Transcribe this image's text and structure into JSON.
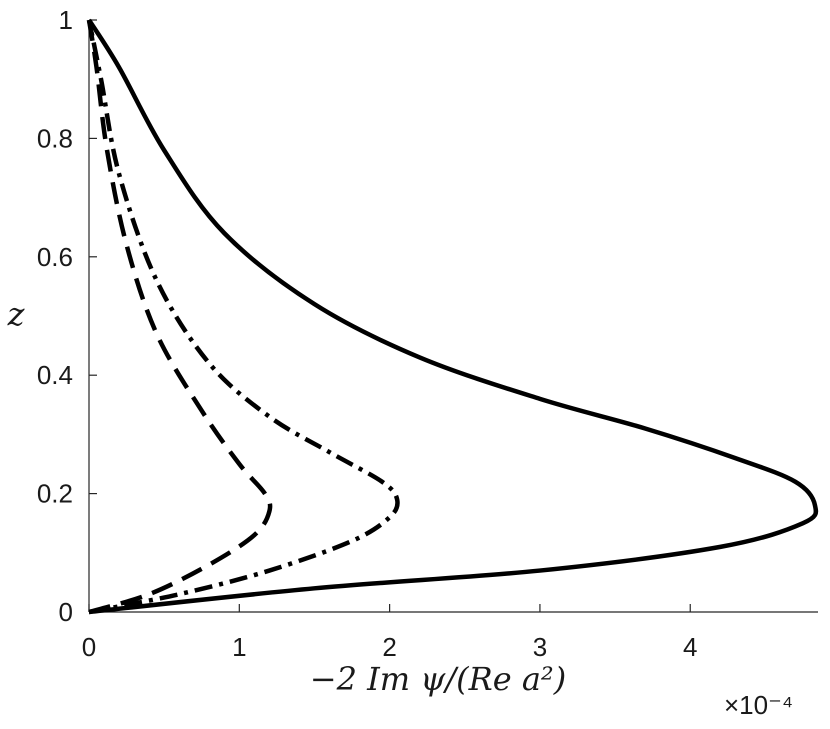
{
  "chart_data": {
    "type": "line",
    "title": "",
    "xlabel": "−2 Im ψ/(Re a²)",
    "ylabel": "z",
    "x_exponent_label": "×10⁻⁴",
    "xlim": [
      0,
      4.85
    ],
    "ylim": [
      0,
      1
    ],
    "x_ticks": [
      0,
      1,
      2,
      3,
      4
    ],
    "x_tick_labels": [
      "0",
      "1",
      "2",
      "3",
      "4"
    ],
    "y_ticks": [
      0,
      0.2,
      0.4,
      0.6,
      0.8,
      1
    ],
    "y_tick_labels": [
      "0",
      "0.2",
      "0.4",
      "0.6",
      "0.8",
      "1"
    ],
    "grid": false,
    "series": [
      {
        "style": "solid",
        "color": "#000000",
        "x": [
          0,
          1.5,
          3.0,
          4.2,
          4.75,
          4.83,
          4.7,
          4.3,
          3.7,
          3.0,
          2.2,
          1.5,
          0.9,
          0.5,
          0.2,
          0
        ],
        "y": [
          0,
          0.04,
          0.07,
          0.11,
          0.15,
          0.18,
          0.22,
          0.26,
          0.31,
          0.36,
          0.43,
          0.52,
          0.64,
          0.78,
          0.92,
          1
        ]
      },
      {
        "style": "dashdot",
        "color": "#000000",
        "x": [
          0,
          0.6,
          1.2,
          1.75,
          2.0,
          2.05,
          1.95,
          1.6,
          1.2,
          0.8,
          0.45,
          0.2,
          0.08,
          0
        ],
        "y": [
          0,
          0.03,
          0.07,
          0.12,
          0.16,
          0.19,
          0.22,
          0.27,
          0.33,
          0.42,
          0.56,
          0.74,
          0.9,
          1
        ]
      },
      {
        "style": "dashed",
        "color": "#000000",
        "x": [
          0,
          0.4,
          0.8,
          1.1,
          1.2,
          1.17,
          1.0,
          0.75,
          0.45,
          0.25,
          0.12,
          0.05,
          0
        ],
        "y": [
          0,
          0.03,
          0.08,
          0.13,
          0.17,
          0.2,
          0.25,
          0.34,
          0.47,
          0.62,
          0.78,
          0.92,
          1
        ]
      }
    ]
  }
}
